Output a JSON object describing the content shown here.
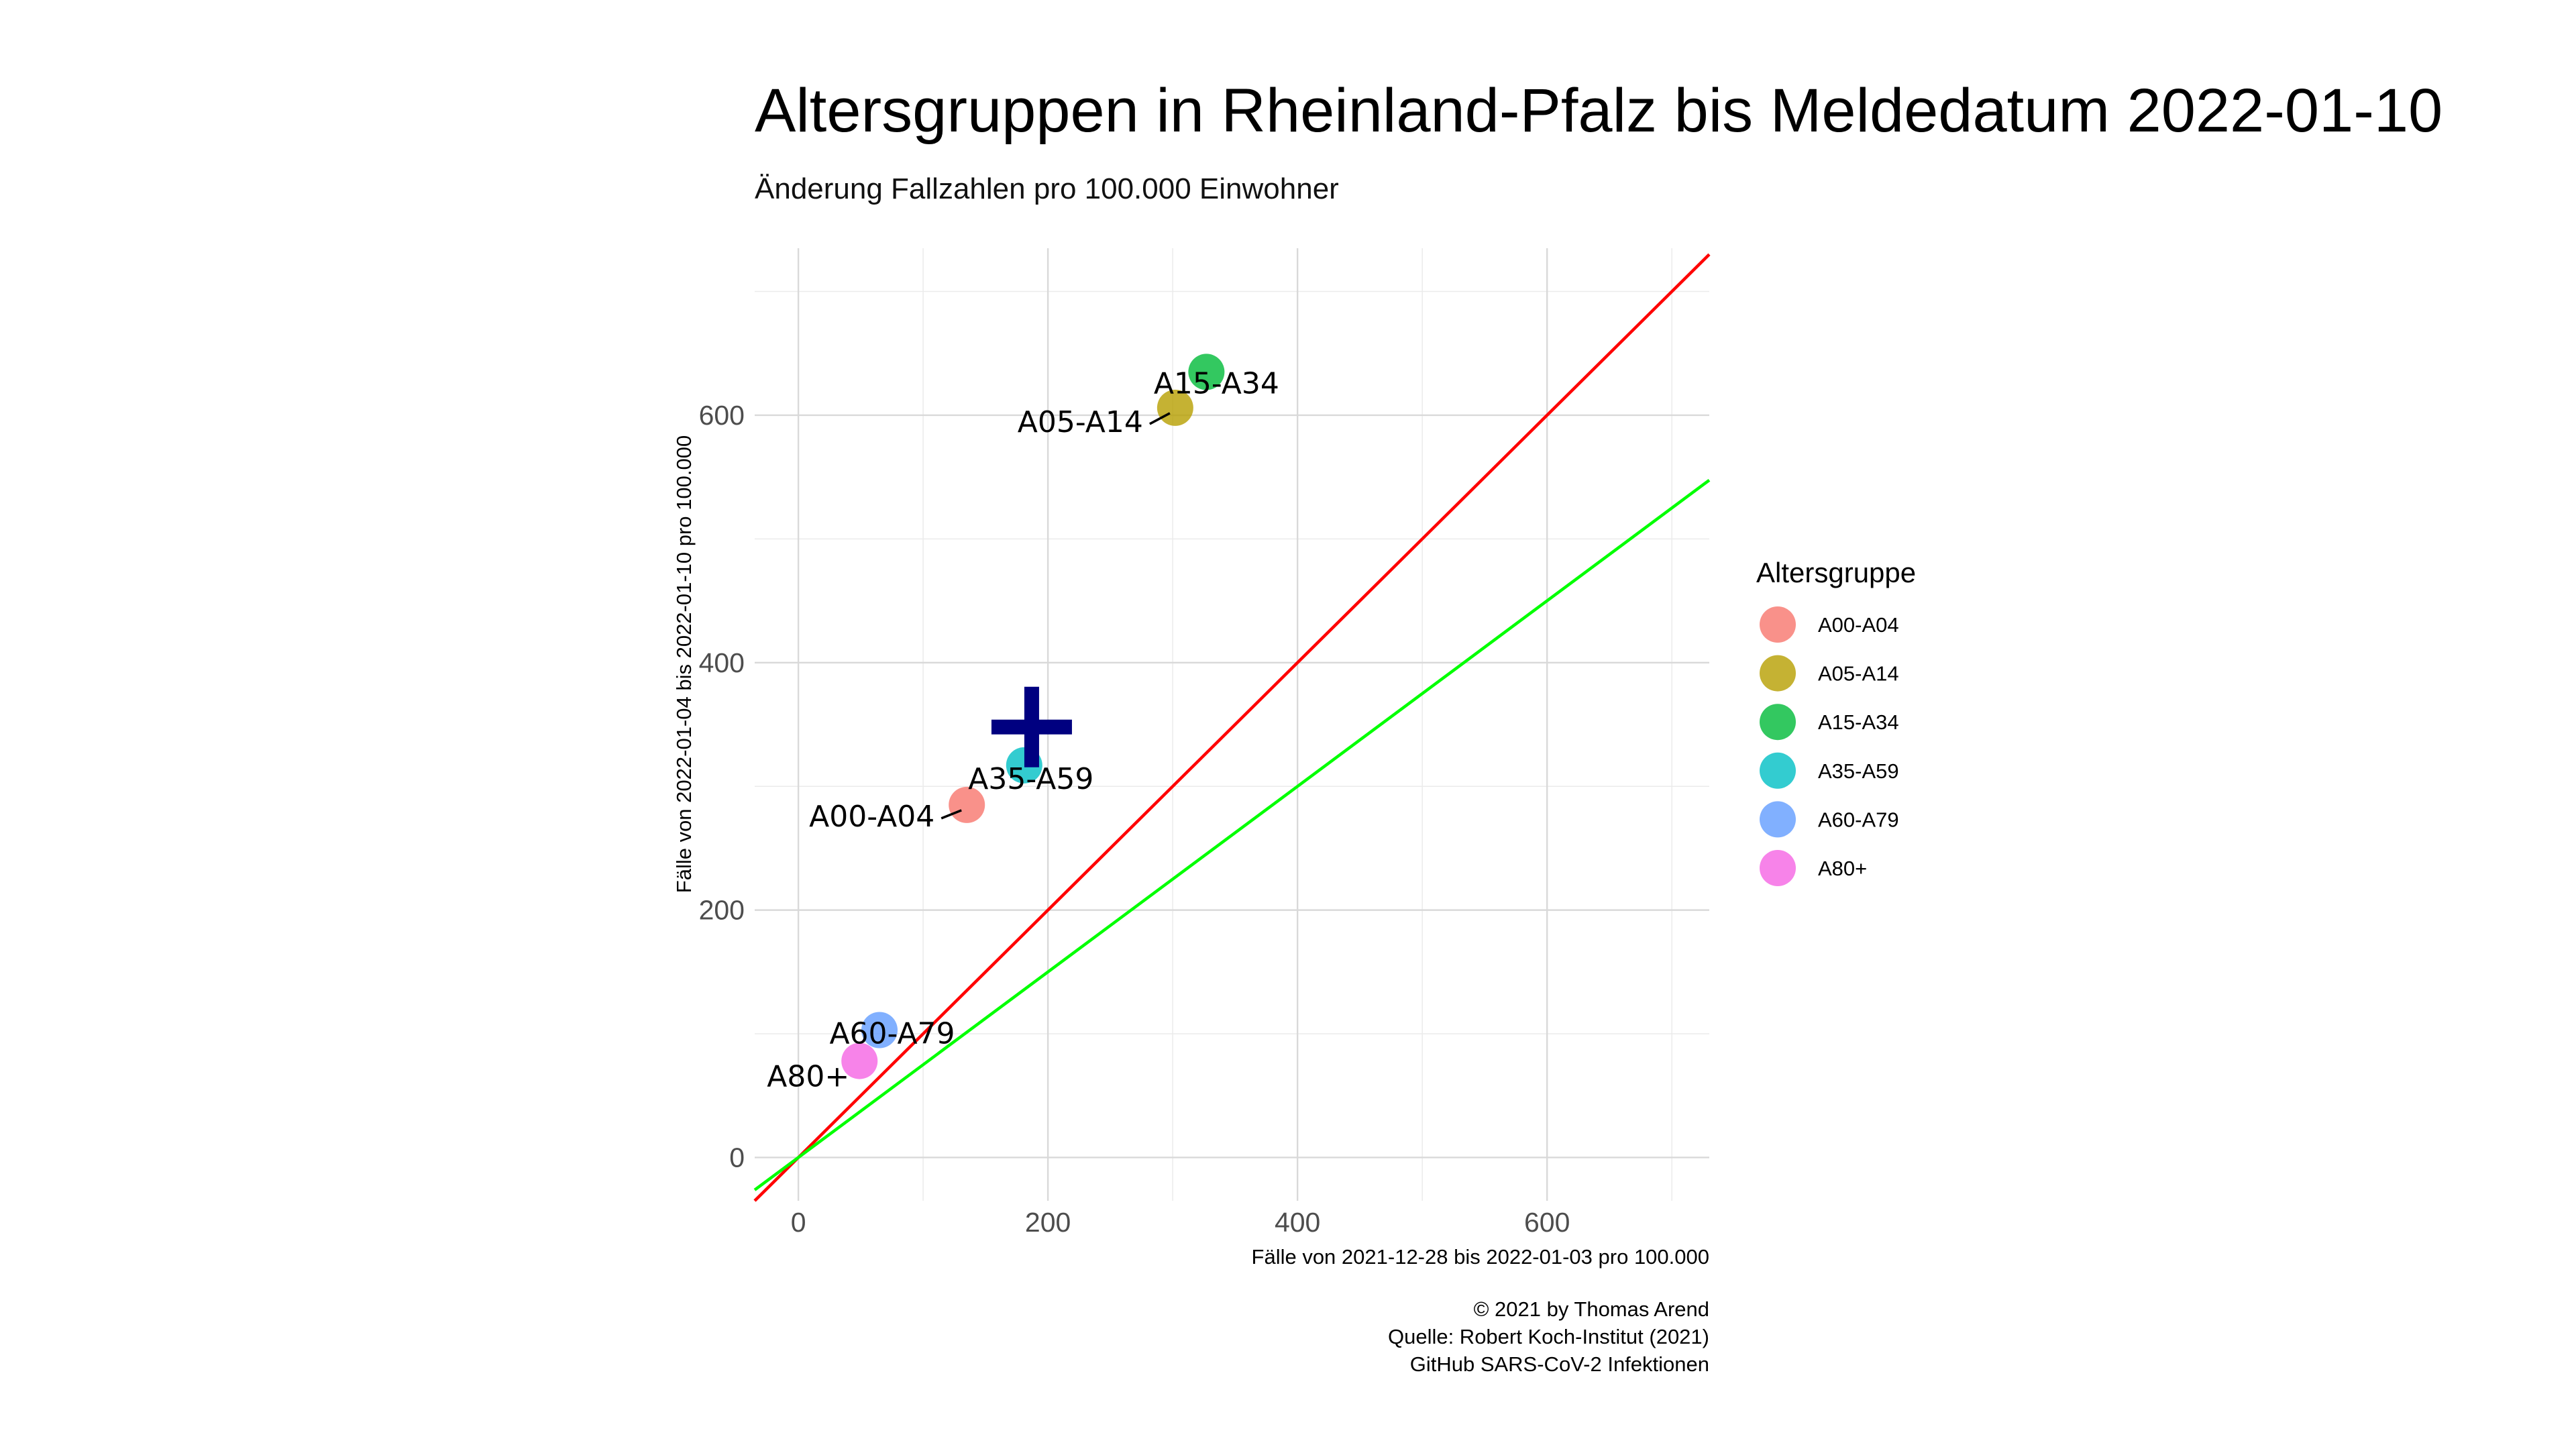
{
  "chart_data": {
    "type": "scatter",
    "title": "Altersgruppen in Rheinland-Pfalz bis Meldedatum 2022-01-10",
    "subtitle": "Änderung Fallzahlen pro 100.000 Einwohner",
    "xlabel": "Fälle von 2021-12-28 bis 2022-01-03 pro 100.000",
    "ylabel": "Fälle von 2022-01-04 bis 2022-01-10 pro 100.000",
    "xlim": [
      -35,
      730
    ],
    "ylim": [
      -35,
      735
    ],
    "x_ticks": [
      0,
      200,
      400,
      600
    ],
    "y_ticks": [
      0,
      200,
      400,
      600
    ],
    "grid": true,
    "legend": {
      "title": "Altersgruppe",
      "position": "right",
      "entries": [
        {
          "label": "A00-A04",
          "color": "#F8766D"
        },
        {
          "label": "A05-A14",
          "color": "#B79F00"
        },
        {
          "label": "A15-A34",
          "color": "#00BA38"
        },
        {
          "label": "A35-A59",
          "color": "#00BFC4"
        },
        {
          "label": "A60-A79",
          "color": "#619CFF"
        },
        {
          "label": "A80+",
          "color": "#F564E3"
        }
      ]
    },
    "points": [
      {
        "label": "A00-A04",
        "x": 135,
        "y": 285,
        "color": "#F8766D"
      },
      {
        "label": "A05-A14",
        "x": 302,
        "y": 606,
        "color": "#B79F00"
      },
      {
        "label": "A15-A34",
        "x": 327,
        "y": 635,
        "color": "#00BA38"
      },
      {
        "label": "A35-A59",
        "x": 181,
        "y": 317,
        "color": "#00BFC4"
      },
      {
        "label": "A60-A79",
        "x": 65,
        "y": 103,
        "color": "#619CFF"
      },
      {
        "label": "A80+",
        "x": 49,
        "y": 78,
        "color": "#F564E3"
      }
    ],
    "total_marker": {
      "x": 187,
      "y": 348,
      "color": "#000080",
      "shape": "plus"
    },
    "reference_lines": [
      {
        "slope": 1,
        "intercept": 0,
        "color": "#FF0000"
      },
      {
        "slope": 0.75,
        "intercept": 0,
        "color": "#00FF00"
      }
    ]
  },
  "caption": {
    "line1": "© 2021 by Thomas Arend",
    "line2": "Quelle: Robert Koch-Institut (2021)",
    "line3": "GitHub SARS-CoV-2 Infektionen"
  }
}
